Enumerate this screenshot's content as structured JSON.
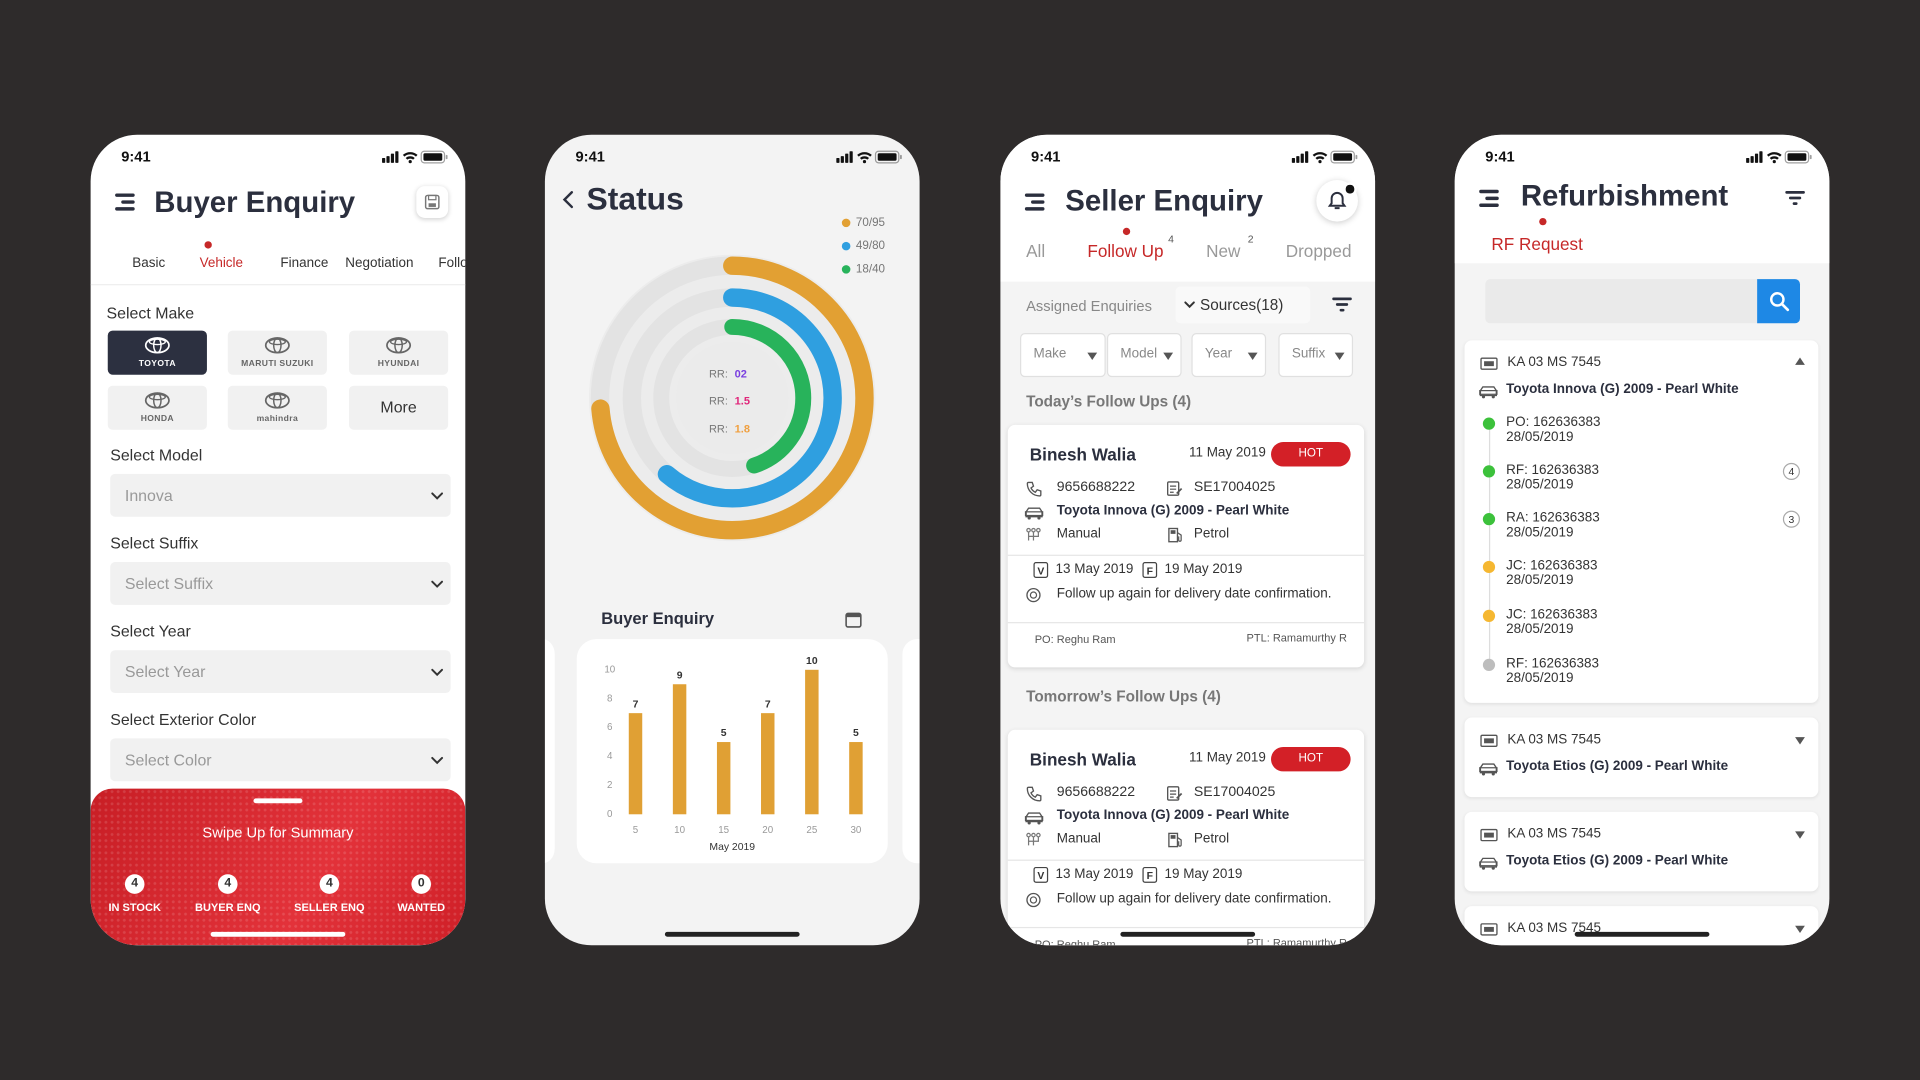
{
  "phones": [
    {
      "time": "9:41",
      "title": "Buyer Enquiry",
      "tabs": [
        "Basic",
        "Vehicle",
        "Finance",
        "Negotiation",
        "Follo"
      ],
      "make_label": "Select Make",
      "makes": [
        "TOYOTA",
        "MARUTI SUZUKI",
        "HYUNDAI",
        "HONDA",
        "mahindra",
        "More"
      ],
      "fields": [
        {
          "label": "Select Model",
          "value": "Innova"
        },
        {
          "label": "Select Suffix",
          "value": "Select Suffix"
        },
        {
          "label": "Select Year",
          "value": "Select Year"
        },
        {
          "label": "Select Exterior Color",
          "value": "Select Color"
        }
      ],
      "summary": {
        "title": "Swipe Up for Summary",
        "counts": [
          {
            "count": 4,
            "label": "IN STOCK"
          },
          {
            "count": 4,
            "label": "BUYER ENQ"
          },
          {
            "count": 4,
            "label": "SELLER ENQ"
          },
          {
            "count": 0,
            "label": "WANTED"
          }
        ]
      }
    },
    {
      "time": "9:41",
      "title": "Status",
      "rings": [
        {
          "label": "70/95",
          "value": 70,
          "total": 95,
          "color": "#e2a033"
        },
        {
          "label": "49/80",
          "value": 49,
          "total": 80,
          "color": "#2f9fe0"
        },
        {
          "label": "18/40",
          "value": 18,
          "total": 40,
          "color": "#28b35b"
        }
      ],
      "rr": [
        {
          "label": "RR:",
          "value": "02",
          "color": "#7a3fe0"
        },
        {
          "label": "RR:",
          "value": "1.5",
          "color": "#e0267a"
        },
        {
          "label": "RR:",
          "value": "1.8",
          "color": "#f0a040"
        }
      ]
    },
    {
      "time": "9:41",
      "title": "Seller Enquiry",
      "tabs": [
        {
          "label": "All"
        },
        {
          "label": "Follow Up",
          "badge": 4
        },
        {
          "label": "New",
          "badge": 2
        },
        {
          "label": "Dropped"
        }
      ],
      "assigned": "Assigned Enquiries",
      "sources": "Sources(18)",
      "filters": [
        "Make",
        "Model",
        "Year",
        "Suffix"
      ],
      "sections": [
        {
          "heading": "Today’s Follow Ups (4)",
          "card": {
            "name": "Binesh Walia",
            "date": "11 May 2019",
            "tag": "HOT",
            "phone": "9656688222",
            "id": "SE17004025",
            "car": "Toyota Innova (G) 2009 - Pearl White",
            "transmission": "Manual",
            "fuel": "Petrol",
            "v": "V",
            "v_date": "13 May 2019",
            "f": "F",
            "f_date": "19 May 2019",
            "note": "Follow up again for delivery date confirmation.",
            "po": "PO: Reghu Ram",
            "ptl": "PTL: Ramamurthy R"
          }
        },
        {
          "heading": "Tomorrow’s Follow Ups (4)",
          "card": {
            "name": "Binesh Walia",
            "date": "11 May 2019",
            "tag": "HOT",
            "phone": "9656688222",
            "id": "SE17004025",
            "car": "Toyota Innova (G) 2009 - Pearl White",
            "transmission": "Manual",
            "fuel": "Petrol",
            "v": "V",
            "v_date": "13 May 2019",
            "f": "F",
            "f_date": "19 May 2019",
            "note": "Follow up again for delivery date confirmation.",
            "po": "PO: Reghu Ram",
            "ptl": "PTL: Ramamurthy R"
          }
        }
      ]
    },
    {
      "time": "9:41",
      "title": "Refurbishment",
      "tab": "RF Request",
      "items": [
        {
          "plate": "KA 03 MS 7545",
          "car": "Toyota Innova (G) 2009 - Pearl White",
          "timeline": [
            {
              "label": "PO: 162636383",
              "date": "28/05/2019",
              "color": "#3cc13b"
            },
            {
              "label": "RF: 162636383",
              "date": "28/05/2019",
              "color": "#3cc13b",
              "badge": 4
            },
            {
              "label": "RA: 162636383",
              "date": "28/05/2019",
              "color": "#3cc13b",
              "badge": 3
            },
            {
              "label": "JC: 162636383",
              "date": "28/05/2019",
              "color": "#f5b731"
            },
            {
              "label": "JC: 162636383",
              "date": "28/05/2019",
              "color": "#f5b731"
            },
            {
              "label": "RF: 162636383",
              "date": "28/05/2019",
              "color": "#bdbdbd"
            }
          ]
        },
        {
          "plate": "KA 03 MS 7545",
          "car": "Toyota Etios (G) 2009 - Pearl White"
        },
        {
          "plate": "KA 03 MS 7545",
          "car": "Toyota Etios (G) 2009 - Pearl White"
        },
        {
          "plate": "KA 03 MS 7545"
        }
      ]
    }
  ],
  "chart_data": {
    "type": "bar",
    "title": "Buyer Enquiry",
    "x": [
      5,
      10,
      15,
      20,
      25,
      30
    ],
    "values": [
      7,
      9,
      5,
      7,
      10,
      5
    ],
    "color": "#e0a034",
    "xlabel": "May 2019",
    "xlim": [
      3,
      32
    ],
    "xticks": [
      5,
      10,
      15,
      20,
      25,
      30
    ],
    "ylim": [
      0,
      10
    ],
    "yticks": [
      0,
      2,
      4,
      6,
      8,
      10
    ],
    "grid": false
  }
}
